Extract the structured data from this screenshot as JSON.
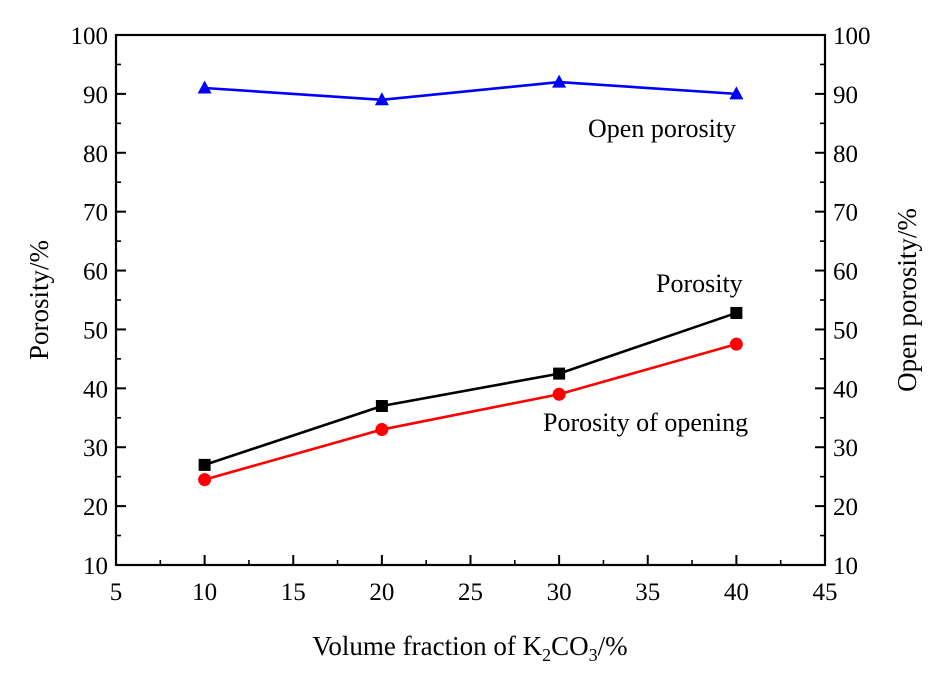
{
  "chart_data": {
    "type": "line",
    "title": "",
    "xlabel": {
      "prefix": "Volume fraction of K",
      "sub1": "2",
      "mid": "CO",
      "sub2": "3",
      "suffix": "/%"
    },
    "ylabel_left": "Porosity/%",
    "ylabel_right": "Open porosity/%",
    "xlim": [
      5,
      45
    ],
    "ylim": [
      10,
      100
    ],
    "x_ticks": [
      5,
      10,
      15,
      20,
      25,
      30,
      35,
      40,
      45
    ],
    "y_ticks": [
      10,
      20,
      30,
      40,
      50,
      60,
      70,
      80,
      90,
      100
    ],
    "grid": false,
    "x": [
      10,
      20,
      30,
      40
    ],
    "series": [
      {
        "name": "Open porosity",
        "axis": "right",
        "marker": "triangle",
        "color": "#0000ff",
        "values": [
          91,
          89,
          92,
          90
        ]
      },
      {
        "name": "Porosity",
        "axis": "left",
        "marker": "square",
        "color": "#000000",
        "values": [
          27,
          37,
          42.5,
          52.8
        ]
      },
      {
        "name": "Porosity of opening",
        "axis": "left",
        "marker": "circle",
        "color": "#ff0000",
        "values": [
          24.5,
          33,
          39,
          47.5
        ]
      }
    ]
  }
}
